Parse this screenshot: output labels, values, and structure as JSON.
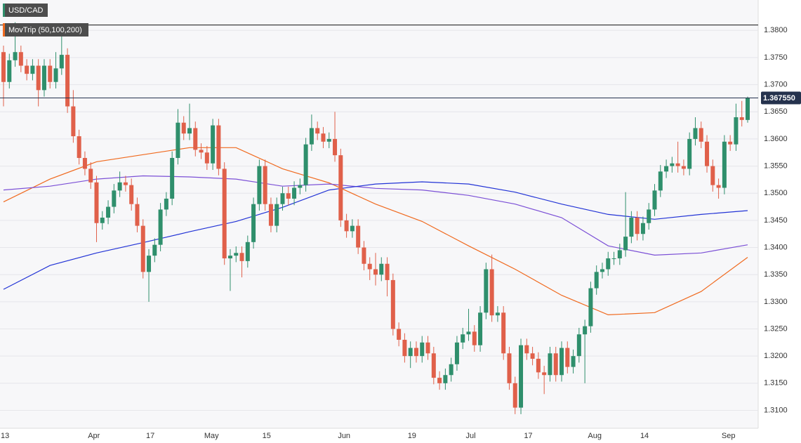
{
  "chart_data": {
    "type": "candlestick",
    "title": "USD/CAD",
    "indicator": "MovTrip (50,100,200)",
    "up_color": "#2f8f6c",
    "down_color": "#e0604a",
    "grid": true,
    "ylim": [
      1.3067,
      1.3856
    ],
    "yticks": [
      {
        "value": 1.31,
        "label": "1.3100"
      },
      {
        "value": 1.315,
        "label": "1.3150"
      },
      {
        "value": 1.32,
        "label": "1.3200"
      },
      {
        "value": 1.325,
        "label": "1.3250"
      },
      {
        "value": 1.33,
        "label": "1.3300"
      },
      {
        "value": 1.335,
        "label": "1.3350"
      },
      {
        "value": 1.34,
        "label": "1.3400"
      },
      {
        "value": 1.345,
        "label": "1.3450"
      },
      {
        "value": 1.35,
        "label": "1.3500"
      },
      {
        "value": 1.355,
        "label": "1.3550"
      },
      {
        "value": 1.36,
        "label": "1.3600"
      },
      {
        "value": 1.365,
        "label": "1.3650"
      },
      {
        "value": 1.37,
        "label": "1.3700"
      },
      {
        "value": 1.375,
        "label": "1.3750"
      },
      {
        "value": 1.38,
        "label": "1.3800"
      }
    ],
    "categories": [
      "13",
      null,
      null,
      null,
      null,
      null,
      null,
      null,
      null,
      null,
      null,
      null,
      null,
      null,
      null,
      "Apr",
      null,
      null,
      null,
      null,
      null,
      null,
      null,
      null,
      null,
      "17",
      null,
      null,
      null,
      null,
      null,
      null,
      null,
      null,
      null,
      "May",
      null,
      null,
      null,
      null,
      null,
      null,
      null,
      null,
      null,
      "15",
      null,
      null,
      null,
      null,
      null,
      null,
      null,
      null,
      null,
      null,
      null,
      null,
      "Jun",
      null,
      null,
      null,
      null,
      null,
      null,
      null,
      null,
      null,
      null,
      null,
      "19",
      null,
      null,
      null,
      null,
      null,
      null,
      null,
      null,
      null,
      "Jul",
      null,
      null,
      null,
      null,
      null,
      null,
      null,
      null,
      null,
      "17",
      null,
      null,
      null,
      null,
      null,
      null,
      null,
      null,
      null,
      null,
      "Aug",
      null,
      null,
      null,
      null,
      null,
      null,
      null,
      null,
      "14",
      null,
      null,
      null,
      null,
      null,
      null,
      null,
      null,
      null,
      null,
      null,
      null,
      null,
      "Sep",
      null,
      null,
      null,
      null
    ],
    "open": [
      1.376,
      1.3705,
      1.3745,
      1.376,
      1.3735,
      1.372,
      1.3735,
      1.369,
      1.3735,
      1.3705,
      1.373,
      1.3755,
      1.366,
      1.3605,
      1.3565,
      1.3545,
      1.352,
      1.3445,
      1.3455,
      1.3475,
      1.3505,
      1.352,
      1.3515,
      1.348,
      1.344,
      1.3355,
      1.3385,
      1.3405,
      1.347,
      1.349,
      1.3565,
      1.363,
      1.361,
      1.362,
      1.358,
      1.3575,
      1.3555,
      1.3625,
      1.3545,
      1.338,
      1.3385,
      1.339,
      1.3375,
      1.341,
      1.348,
      1.355,
      1.348,
      1.344,
      1.348,
      1.35,
      1.349,
      1.351,
      1.3515,
      1.359,
      1.362,
      1.361,
      1.3595,
      1.36,
      1.357,
      1.345,
      1.343,
      1.344,
      1.34,
      1.337,
      1.336,
      1.335,
      1.337,
      1.334,
      1.325,
      1.323,
      1.32,
      1.3215,
      1.32,
      1.3225,
      1.3205,
      1.316,
      1.315,
      1.3165,
      1.3185,
      1.3225,
      1.324,
      1.3245,
      1.322,
      1.328,
      1.336,
      1.3275,
      1.328,
      1.3205,
      1.315,
      1.3105,
      1.322,
      1.3205,
      1.3195,
      1.317,
      1.3165,
      1.3205,
      1.3165,
      1.3215,
      1.318,
      1.32,
      1.324,
      1.3255,
      1.3325,
      1.3355,
      1.336,
      1.338,
      1.338,
      1.3395,
      1.342,
      1.3455,
      1.3425,
      1.3445,
      1.347,
      1.3505,
      1.354,
      1.355,
      1.3555,
      1.355,
      1.3545,
      1.36,
      1.362,
      1.3595,
      1.355,
      1.3515,
      1.351,
      1.3595,
      1.359,
      1.364,
      1.3635
    ],
    "high": [
      1.3772,
      1.3757,
      1.3815,
      1.3772,
      1.3747,
      1.3747,
      1.3747,
      1.3747,
      1.3747,
      1.376,
      1.381,
      1.3767,
      1.369,
      1.3617,
      1.3577,
      1.3557,
      1.3532,
      1.3467,
      1.3487,
      1.3517,
      1.354,
      1.3532,
      1.3527,
      1.3492,
      1.3452,
      1.3397,
      1.3417,
      1.3482,
      1.3502,
      1.3577,
      1.3655,
      1.3642,
      1.3665,
      1.3632,
      1.3592,
      1.3587,
      1.3637,
      1.3637,
      1.3557,
      1.3397,
      1.3402,
      1.3402,
      1.3422,
      1.3492,
      1.3562,
      1.3562,
      1.3492,
      1.3492,
      1.3512,
      1.3512,
      1.3522,
      1.3527,
      1.3602,
      1.3645,
      1.3632,
      1.3622,
      1.3612,
      1.365,
      1.3582,
      1.3462,
      1.3452,
      1.3452,
      1.3412,
      1.3382,
      1.339,
      1.3382,
      1.3382,
      1.3352,
      1.3262,
      1.3242,
      1.3227,
      1.3227,
      1.3237,
      1.3237,
      1.3217,
      1.3172,
      1.3177,
      1.3197,
      1.3237,
      1.3252,
      1.3287,
      1.3257,
      1.3292,
      1.3372,
      1.3387,
      1.3292,
      1.3292,
      1.3217,
      1.3162,
      1.3232,
      1.3232,
      1.3217,
      1.3207,
      1.3182,
      1.3217,
      1.3217,
      1.3227,
      1.3227,
      1.3212,
      1.3252,
      1.3267,
      1.3337,
      1.3367,
      1.3372,
      1.3392,
      1.3392,
      1.3407,
      1.3502,
      1.3467,
      1.3467,
      1.3457,
      1.3482,
      1.3517,
      1.3552,
      1.3562,
      1.3567,
      1.3595,
      1.3562,
      1.3612,
      1.364,
      1.3632,
      1.3607,
      1.3562,
      1.3527,
      1.3607,
      1.3607,
      1.3665,
      1.367,
      1.3678
    ],
    "low": [
      1.366,
      1.3693,
      1.3733,
      1.3723,
      1.3708,
      1.3708,
      1.366,
      1.3678,
      1.3693,
      1.3693,
      1.3718,
      1.3648,
      1.3593,
      1.3553,
      1.3533,
      1.3508,
      1.341,
      1.3433,
      1.3443,
      1.3463,
      1.3493,
      1.3503,
      1.3468,
      1.3428,
      1.3343,
      1.33,
      1.3373,
      1.3393,
      1.3458,
      1.3478,
      1.3553,
      1.3598,
      1.3598,
      1.3568,
      1.3563,
      1.3543,
      1.3543,
      1.3533,
      1.3368,
      1.332,
      1.3373,
      1.3345,
      1.3363,
      1.3398,
      1.3468,
      1.3468,
      1.3428,
      1.3428,
      1.3468,
      1.3478,
      1.3478,
      1.3498,
      1.3503,
      1.3578,
      1.3598,
      1.3583,
      1.3583,
      1.3558,
      1.3438,
      1.3418,
      1.3418,
      1.3388,
      1.3358,
      1.334,
      1.333,
      1.3338,
      1.331,
      1.3238,
      1.3218,
      1.3188,
      1.3178,
      1.3188,
      1.3188,
      1.3193,
      1.3148,
      1.3138,
      1.3138,
      1.3153,
      1.3173,
      1.3213,
      1.3228,
      1.3208,
      1.3208,
      1.3268,
      1.3263,
      1.3263,
      1.3193,
      1.3138,
      1.3093,
      1.3093,
      1.3193,
      1.3183,
      1.3158,
      1.313,
      1.3153,
      1.3153,
      1.3153,
      1.3168,
      1.3168,
      1.3188,
      1.315,
      1.3243,
      1.3313,
      1.3343,
      1.3348,
      1.3368,
      1.3368,
      1.3383,
      1.3408,
      1.3413,
      1.3413,
      1.3433,
      1.3458,
      1.3493,
      1.3528,
      1.3538,
      1.3538,
      1.3533,
      1.3533,
      1.3588,
      1.3583,
      1.3538,
      1.3503,
      1.349,
      1.3498,
      1.3578,
      1.3578,
      1.3623,
      1.363
    ],
    "close": [
      1.3705,
      1.3745,
      1.376,
      1.3735,
      1.372,
      1.3735,
      1.369,
      1.3735,
      1.3705,
      1.373,
      1.3755,
      1.366,
      1.3605,
      1.3565,
      1.3545,
      1.352,
      1.3445,
      1.3455,
      1.3475,
      1.3505,
      1.352,
      1.3515,
      1.348,
      1.344,
      1.3355,
      1.3385,
      1.3405,
      1.347,
      1.349,
      1.3565,
      1.363,
      1.361,
      1.362,
      1.358,
      1.3575,
      1.3555,
      1.3625,
      1.3545,
      1.338,
      1.3385,
      1.339,
      1.3375,
      1.341,
      1.348,
      1.355,
      1.348,
      1.344,
      1.348,
      1.35,
      1.349,
      1.351,
      1.3515,
      1.359,
      1.362,
      1.361,
      1.3595,
      1.36,
      1.357,
      1.345,
      1.343,
      1.344,
      1.34,
      1.337,
      1.336,
      1.335,
      1.337,
      1.334,
      1.325,
      1.323,
      1.32,
      1.3215,
      1.32,
      1.3225,
      1.3205,
      1.316,
      1.315,
      1.3165,
      1.3185,
      1.3225,
      1.324,
      1.3245,
      1.322,
      1.328,
      1.336,
      1.3275,
      1.328,
      1.3205,
      1.315,
      1.3105,
      1.322,
      1.3205,
      1.3195,
      1.317,
      1.3165,
      1.3205,
      1.3165,
      1.3215,
      1.318,
      1.32,
      1.324,
      1.3255,
      1.3325,
      1.3355,
      1.336,
      1.338,
      1.338,
      1.3395,
      1.342,
      1.3455,
      1.3425,
      1.3445,
      1.347,
      1.3505,
      1.354,
      1.355,
      1.3555,
      1.355,
      1.3545,
      1.36,
      1.362,
      1.3595,
      1.355,
      1.3515,
      1.351,
      1.3595,
      1.359,
      1.364,
      1.3635,
      1.3676
    ],
    "moving_averages": [
      {
        "color": "#f06a1f",
        "x": [
          0,
          8,
          16,
          24,
          32,
          40,
          48,
          56,
          64,
          72,
          80,
          88,
          96,
          104,
          112,
          120,
          128
        ],
        "values": [
          1.3484,
          1.3526,
          1.3558,
          1.3571,
          1.3584,
          1.3584,
          1.3545,
          1.3519,
          1.348,
          1.3448,
          1.3403,
          1.336,
          1.3312,
          1.3276,
          1.328,
          1.3319,
          1.3382
        ]
      },
      {
        "color": "#7b4fd6",
        "x": [
          0,
          8,
          16,
          24,
          32,
          40,
          48,
          56,
          64,
          72,
          80,
          88,
          96,
          104,
          112,
          120,
          128
        ],
        "values": [
          1.3506,
          1.3513,
          1.3526,
          1.3532,
          1.353,
          1.3526,
          1.3513,
          1.3517,
          1.3509,
          1.3506,
          1.3496,
          1.348,
          1.3455,
          1.3403,
          1.3386,
          1.339,
          1.3405
        ]
      },
      {
        "color": "#2233d6",
        "x": [
          0,
          8,
          16,
          24,
          32,
          40,
          48,
          56,
          64,
          72,
          80,
          88,
          96,
          104,
          112,
          120,
          128
        ],
        "values": [
          1.3323,
          1.3367,
          1.339,
          1.3409,
          1.3429,
          1.3448,
          1.3474,
          1.3506,
          1.3517,
          1.3521,
          1.3517,
          1.3502,
          1.348,
          1.3461,
          1.3452,
          1.3461,
          1.3468
        ]
      }
    ],
    "levels": [
      1.381
    ],
    "last_price": {
      "value": 1.36755,
      "label": "1.367550"
    }
  }
}
